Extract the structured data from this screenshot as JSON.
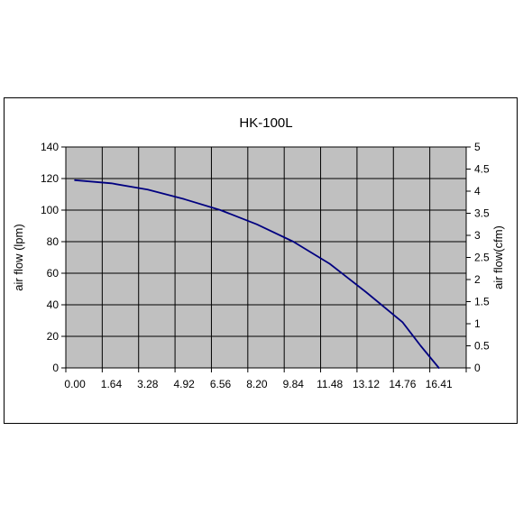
{
  "chart_data": {
    "type": "line",
    "title": "HK-100L",
    "ylabel": "air flow (lpm)",
    "y2label": "air flow(cfm)",
    "xlabel": "",
    "x_tick_labels": [
      "0.00",
      "1.64",
      "3.28",
      "4.92",
      "6.56",
      "8.20",
      "9.84",
      "11.48",
      "13.12",
      "14.76",
      "16.41"
    ],
    "y_ticks": [
      "0",
      "20",
      "40",
      "60",
      "80",
      "100",
      "120",
      "140"
    ],
    "y2_ticks": [
      "0",
      "0.5",
      "1",
      "1.5",
      "2",
      "2.5",
      "3",
      "3.5",
      "4",
      "4.5",
      "5"
    ],
    "ylim": [
      0,
      140
    ],
    "y2lim": [
      0,
      5
    ],
    "xlim": [
      -0.25,
      10.75
    ],
    "grid": true,
    "colors": {
      "plot_bg": "#c0c0c0",
      "line": "#000080",
      "grid": "#000000"
    },
    "series": [
      {
        "x": [
          0,
          1,
          2,
          3,
          4,
          5,
          6,
          7,
          8,
          9,
          9.5,
          10
        ],
        "values": [
          119,
          117,
          113,
          107,
          100,
          91,
          80,
          66,
          48,
          29,
          14,
          0
        ]
      }
    ]
  }
}
